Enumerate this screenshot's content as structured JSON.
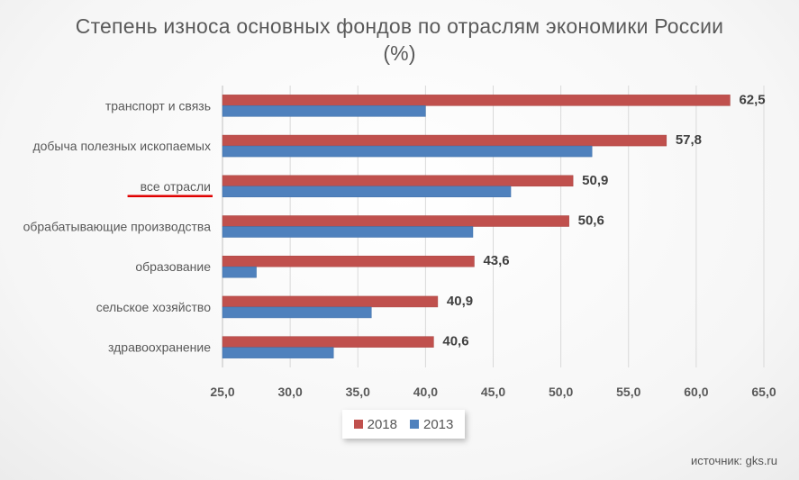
{
  "chart_data": {
    "type": "bar",
    "orientation": "horizontal",
    "title": "Степень износа основных фондов по отраслям экономики России",
    "subtitle": "(%)",
    "categories": [
      "транспорт и связь",
      "добыча полезных ископаемых",
      "все отрасли",
      "обрабатывающие производства",
      "образование",
      "сельское хозяйство",
      "здравоохранение"
    ],
    "series": [
      {
        "name": "2018",
        "color": "#c0504d",
        "values": [
          62.5,
          57.8,
          50.9,
          50.6,
          43.6,
          40.9,
          40.6
        ]
      },
      {
        "name": "2013",
        "color": "#4f81bd",
        "values": [
          40.0,
          52.3,
          46.3,
          43.5,
          27.5,
          36.0,
          33.2
        ]
      }
    ],
    "data_labels": [
      "62,5",
      "57,8",
      "50,9",
      "50,6",
      "43,6",
      "40,9",
      "40,6"
    ],
    "xlim": [
      25,
      65
    ],
    "xticks": [
      25,
      30,
      35,
      40,
      45,
      50,
      55,
      60,
      65
    ],
    "xtick_labels": [
      "25,0",
      "30,0",
      "35,0",
      "40,0",
      "45,0",
      "50,0",
      "55,0",
      "60,0",
      "65,0"
    ],
    "grid": true,
    "legend_position": "bottom",
    "highlighted_category": "все отрасли",
    "highlight_color": "#e00000"
  },
  "source": "источник: gks.ru"
}
